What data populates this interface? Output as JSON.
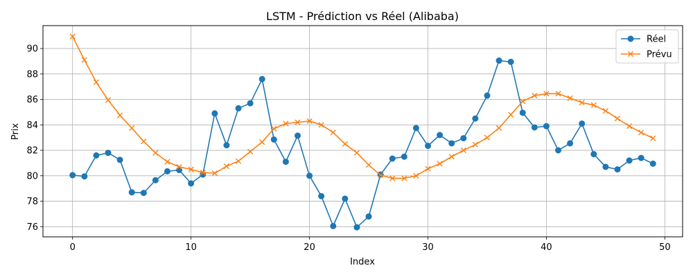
{
  "chart_data": {
    "type": "line",
    "title": "LSTM - Prédiction vs Réel (Alibaba)",
    "xlabel": "Index",
    "ylabel": "Prix",
    "xlim": [
      -2.5,
      51.5
    ],
    "ylim": [
      75.2,
      91.8
    ],
    "x_ticks": [
      0,
      10,
      20,
      30,
      40,
      50
    ],
    "y_ticks": [
      76,
      78,
      80,
      82,
      84,
      86,
      88,
      90
    ],
    "grid": true,
    "legend_position": "top-right",
    "x": [
      0,
      1,
      2,
      3,
      4,
      5,
      6,
      7,
      8,
      9,
      10,
      11,
      12,
      13,
      14,
      15,
      16,
      17,
      18,
      19,
      20,
      21,
      22,
      23,
      24,
      25,
      26,
      27,
      28,
      29,
      30,
      31,
      32,
      33,
      34,
      35,
      36,
      37,
      38,
      39,
      40,
      41,
      42,
      43,
      44,
      45,
      46,
      47,
      48,
      49
    ],
    "series": [
      {
        "name": "Réel",
        "color": "#1f77b4",
        "marker": "circle",
        "values": [
          80.05,
          79.95,
          81.6,
          81.8,
          81.25,
          78.7,
          78.65,
          79.65,
          80.35,
          80.45,
          79.4,
          80.1,
          84.9,
          82.4,
          85.3,
          85.7,
          87.6,
          82.85,
          81.1,
          83.15,
          80.0,
          78.4,
          76.05,
          78.2,
          75.95,
          76.8,
          80.1,
          81.35,
          81.5,
          83.75,
          82.35,
          83.2,
          82.55,
          82.95,
          84.5,
          86.3,
          89.05,
          88.95,
          84.95,
          83.8,
          83.9,
          82.0,
          82.55,
          84.1,
          81.7,
          80.7,
          80.5,
          81.2,
          81.4,
          80.95
        ]
      },
      {
        "name": "Prévu",
        "color": "#ff7f0e",
        "marker": "x",
        "values": [
          90.95,
          89.1,
          87.35,
          85.95,
          84.75,
          83.75,
          82.7,
          81.8,
          81.1,
          80.7,
          80.5,
          80.25,
          80.2,
          80.75,
          81.15,
          81.9,
          82.65,
          83.7,
          84.1,
          84.2,
          84.3,
          84.0,
          83.4,
          82.5,
          81.8,
          80.85,
          80.05,
          79.8,
          79.8,
          80.0,
          80.55,
          80.95,
          81.5,
          82.0,
          82.45,
          83.0,
          83.75,
          84.8,
          85.85,
          86.3,
          86.45,
          86.45,
          86.1,
          85.75,
          85.55,
          85.1,
          84.5,
          83.9,
          83.4,
          82.95
        ]
      }
    ]
  }
}
